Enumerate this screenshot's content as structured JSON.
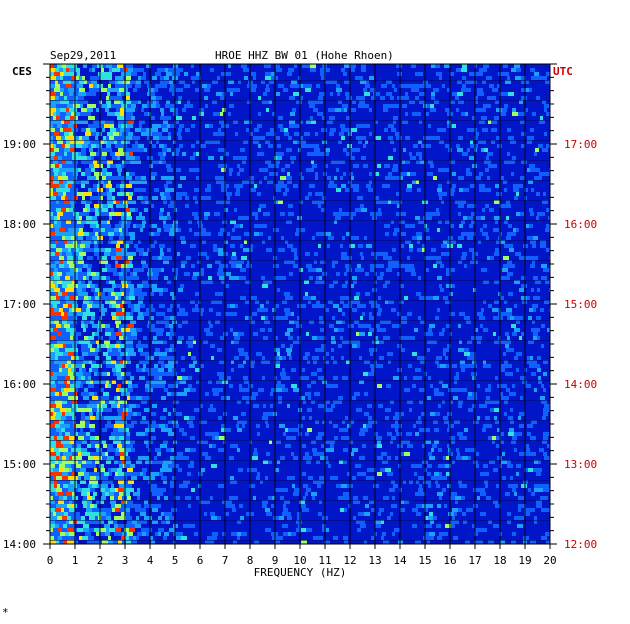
{
  "header": {
    "date": "Sep29,2011",
    "title": "HROE HHZ BW 01 (Hohe Rhoen)",
    "left_tz": "CES",
    "right_tz": "UTC"
  },
  "footer": {
    "mark": "*"
  },
  "colors": {
    "background": "#0016c8",
    "left_time": "#000000",
    "right_time": "#cc0000",
    "grid": "#000000"
  },
  "chart_data": {
    "type": "heatmap",
    "title": "HROE HHZ BW 01 (Hohe Rhoen)",
    "xlabel": "FREQUENCY (HZ)",
    "xlim": [
      0,
      20
    ],
    "x_ticks": [
      "0",
      "1",
      "2",
      "3",
      "4",
      "5",
      "6",
      "7",
      "8",
      "9",
      "10",
      "11",
      "12",
      "13",
      "14",
      "15",
      "16",
      "17",
      "18",
      "19",
      "20"
    ],
    "y_left_ticks": [
      "19:00",
      "18:00",
      "17:00",
      "16:00",
      "15:00",
      "14:00"
    ],
    "y_right_ticks": [
      "17:00",
      "16:00",
      "15:00",
      "14:00",
      "13:00",
      "12:00"
    ],
    "y_left_range": [
      "14:00",
      "20:00"
    ],
    "y_right_range": [
      "12:00",
      "18:00"
    ]
  }
}
